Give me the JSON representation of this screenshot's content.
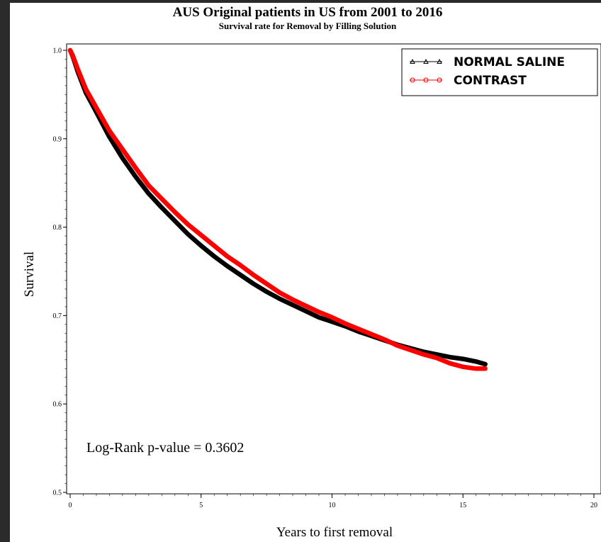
{
  "chart_data": {
    "type": "line",
    "title": "AUS Original patients in US from 2001 to 2016",
    "subtitle": "Survival rate for Removal by Filling Solution",
    "xlabel": "Years to first removal",
    "ylabel": "Survival",
    "xlim": [
      0,
      20
    ],
    "ylim": [
      0.5,
      1.0
    ],
    "x_ticks": [
      {
        "value": 0,
        "label": "0"
      },
      {
        "value": 5,
        "label": "5"
      },
      {
        "value": 10,
        "label": "10"
      },
      {
        "value": 15,
        "label": "15"
      },
      {
        "value": 20,
        "label": "20"
      }
    ],
    "y_ticks": [
      {
        "value": 0.5,
        "label": "0.5"
      },
      {
        "value": 0.6,
        "label": "0.6"
      },
      {
        "value": 0.7,
        "label": "0.7"
      },
      {
        "value": 0.8,
        "label": "0.8"
      },
      {
        "value": 0.9,
        "label": "0.9"
      },
      {
        "value": 1.0,
        "label": "1.0"
      }
    ],
    "legend_position": "top-right",
    "annotation": "Log-Rank p-value = 0.3602",
    "series": [
      {
        "name": "NORMAL SALINE",
        "color": "#000000",
        "marker": "triangle",
        "x": [
          0,
          0.1,
          0.3,
          0.6,
          1.0,
          1.5,
          2.0,
          2.5,
          3.0,
          3.5,
          4.0,
          4.5,
          5.0,
          5.5,
          6.0,
          6.5,
          7.0,
          7.5,
          8.0,
          8.5,
          9.0,
          9.5,
          10.0,
          10.5,
          11.0,
          11.5,
          12.0,
          12.5,
          13.0,
          13.5,
          14.0,
          14.5,
          15.0,
          15.5,
          15.85
        ],
        "y": [
          1.0,
          0.993,
          0.975,
          0.952,
          0.93,
          0.902,
          0.878,
          0.857,
          0.838,
          0.822,
          0.807,
          0.792,
          0.779,
          0.767,
          0.756,
          0.746,
          0.736,
          0.727,
          0.719,
          0.712,
          0.705,
          0.698,
          0.693,
          0.688,
          0.682,
          0.677,
          0.672,
          0.667,
          0.663,
          0.659,
          0.656,
          0.653,
          0.651,
          0.648,
          0.645
        ]
      },
      {
        "name": "CONTRAST",
        "color": "#ff0000",
        "marker": "circle",
        "x": [
          0,
          0.1,
          0.3,
          0.6,
          1.0,
          1.5,
          2.0,
          2.5,
          3.0,
          3.5,
          4.0,
          4.5,
          5.0,
          5.5,
          6.0,
          6.5,
          7.0,
          7.5,
          8.0,
          8.5,
          9.0,
          9.5,
          10.0,
          10.5,
          11.0,
          11.5,
          12.0,
          12.5,
          13.0,
          13.5,
          14.0,
          14.5,
          15.0,
          15.5,
          15.85
        ],
        "y": [
          1.0,
          0.994,
          0.978,
          0.956,
          0.935,
          0.909,
          0.888,
          0.867,
          0.847,
          0.832,
          0.817,
          0.803,
          0.791,
          0.779,
          0.767,
          0.757,
          0.746,
          0.736,
          0.726,
          0.718,
          0.711,
          0.704,
          0.698,
          0.691,
          0.685,
          0.679,
          0.673,
          0.666,
          0.661,
          0.656,
          0.652,
          0.646,
          0.642,
          0.64,
          0.64
        ]
      }
    ]
  }
}
